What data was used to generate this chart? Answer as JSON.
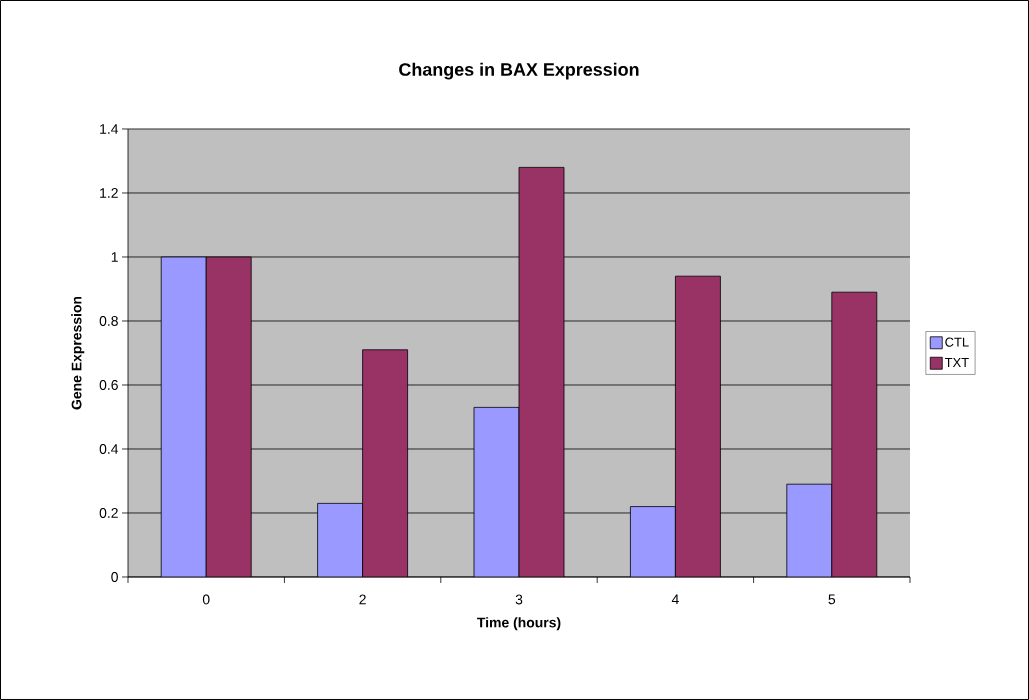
{
  "chart_data": {
    "type": "bar",
    "title": "Changes in BAX Expression",
    "xlabel": "Time (hours)",
    "ylabel": "Gene Expression",
    "categories": [
      "0",
      "2",
      "3",
      "4",
      "5"
    ],
    "series": [
      {
        "name": "CTL",
        "color": "#9999ff",
        "values": [
          1.0,
          0.23,
          0.53,
          0.22,
          0.29
        ]
      },
      {
        "name": "TXT",
        "color": "#993366",
        "values": [
          1.0,
          0.71,
          1.28,
          0.94,
          0.89
        ]
      }
    ],
    "ylim": [
      0,
      1.4
    ],
    "yticks": [
      0,
      0.2,
      0.4,
      0.6,
      0.8,
      1,
      1.2,
      1.4
    ],
    "grid": "y",
    "legend": "right"
  }
}
